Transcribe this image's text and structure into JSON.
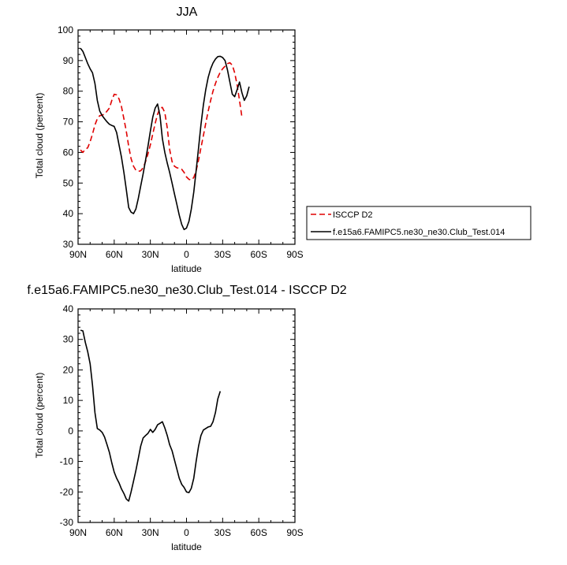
{
  "chart_data": [
    {
      "type": "line",
      "title": "JJA",
      "xlabel": "latitude",
      "ylabel": "Total cloud (percent)",
      "xlim": [
        90,
        -90
      ],
      "ylim": [
        30,
        100
      ],
      "x_ticks": [
        {
          "value": 90,
          "label": "90N"
        },
        {
          "value": 60,
          "label": "60N"
        },
        {
          "value": 30,
          "label": "30N"
        },
        {
          "value": 0,
          "label": "0"
        },
        {
          "value": -30,
          "label": "30S"
        },
        {
          "value": -60,
          "label": "60S"
        },
        {
          "value": -90,
          "label": "90S"
        }
      ],
      "y_ticks": [
        30,
        40,
        50,
        60,
        70,
        80,
        90,
        100
      ],
      "legend_position": "right",
      "series": [
        {
          "name": "ISCCP D2",
          "color": "#e00000",
          "dash": "dashed",
          "points": [
            [
              88,
              60.8
            ],
            [
              86,
              60
            ],
            [
              84,
              61
            ],
            [
              82,
              61.5
            ],
            [
              80,
              63.5
            ],
            [
              78,
              66
            ],
            [
              76,
              69
            ],
            [
              74,
              71
            ],
            [
              72,
              72
            ],
            [
              70,
              72.2
            ],
            [
              68,
              72.5
            ],
            [
              66,
              73.5
            ],
            [
              64,
              74.5
            ],
            [
              62,
              77
            ],
            [
              60,
              79
            ],
            [
              58,
              78.8
            ],
            [
              56,
              77.5
            ],
            [
              54,
              75
            ],
            [
              52,
              71
            ],
            [
              50,
              67
            ],
            [
              48,
              62
            ],
            [
              46,
              58
            ],
            [
              44,
              55.5
            ],
            [
              42,
              54.2
            ],
            [
              40,
              53.8
            ],
            [
              38,
              54
            ],
            [
              36,
              55
            ],
            [
              34,
              57
            ],
            [
              32,
              59.5
            ],
            [
              30,
              62.5
            ],
            [
              28,
              66
            ],
            [
              26,
              69.5
            ],
            [
              24,
              72.5
            ],
            [
              22,
              74.5
            ],
            [
              20,
              74.7
            ],
            [
              18,
              73
            ],
            [
              16,
              68
            ],
            [
              14,
              61
            ],
            [
              12,
              57
            ],
            [
              10,
              55.5
            ],
            [
              8,
              55
            ],
            [
              6,
              54.8
            ],
            [
              4,
              54.5
            ],
            [
              2,
              53.5
            ],
            [
              0,
              52
            ],
            [
              -2,
              51.2
            ],
            [
              -4,
              51
            ],
            [
              -6,
              51.8
            ],
            [
              -8,
              54
            ],
            [
              -10,
              57.5
            ],
            [
              -12,
              61.5
            ],
            [
              -14,
              65.5
            ],
            [
              -16,
              69.5
            ],
            [
              -18,
              73.5
            ],
            [
              -20,
              77
            ],
            [
              -22,
              80
            ],
            [
              -24,
              82.5
            ],
            [
              -26,
              84.5
            ],
            [
              -28,
              86.2
            ],
            [
              -30,
              87.3
            ],
            [
              -32,
              88.2
            ],
            [
              -34,
              89
            ],
            [
              -36,
              89.3
            ],
            [
              -38,
              88.5
            ],
            [
              -40,
              86
            ],
            [
              -42,
              82
            ],
            [
              -44,
              77
            ],
            [
              -46,
              71.5
            ]
          ]
        },
        {
          "name": "f.e15a6.FAMIPC5.ne30_ne30.Club_Test.014",
          "color": "#000000",
          "dash": "solid",
          "points": [
            [
              88,
              94
            ],
            [
              86,
              93
            ],
            [
              84,
              91
            ],
            [
              82,
              89
            ],
            [
              80,
              87.3
            ],
            [
              78,
              86
            ],
            [
              76,
              82.5
            ],
            [
              74,
              77
            ],
            [
              72,
              73.5
            ],
            [
              70,
              72
            ],
            [
              68,
              71
            ],
            [
              66,
              70
            ],
            [
              64,
              69.2
            ],
            [
              62,
              68.8
            ],
            [
              60,
              68.5
            ],
            [
              58,
              66.5
            ],
            [
              56,
              62.5
            ],
            [
              54,
              58.5
            ],
            [
              52,
              53.5
            ],
            [
              50,
              48
            ],
            [
              48,
              42
            ],
            [
              46,
              40.5
            ],
            [
              44,
              40
            ],
            [
              42,
              41.5
            ],
            [
              40,
              45
            ],
            [
              38,
              49
            ],
            [
              36,
              53
            ],
            [
              34,
              57.5
            ],
            [
              32,
              62
            ],
            [
              30,
              67
            ],
            [
              28,
              71.5
            ],
            [
              26,
              74.5
            ],
            [
              24,
              75.8
            ],
            [
              22,
              72
            ],
            [
              20,
              64.5
            ],
            [
              18,
              60
            ],
            [
              16,
              56.5
            ],
            [
              14,
              53.5
            ],
            [
              12,
              50
            ],
            [
              10,
              46.5
            ],
            [
              8,
              43
            ],
            [
              6,
              39.5
            ],
            [
              4,
              36.5
            ],
            [
              2,
              34.8
            ],
            [
              0,
              35.3
            ],
            [
              -2,
              37.5
            ],
            [
              -4,
              41.5
            ],
            [
              -6,
              47
            ],
            [
              -8,
              54
            ],
            [
              -10,
              61.5
            ],
            [
              -12,
              69
            ],
            [
              -14,
              75.5
            ],
            [
              -16,
              80.5
            ],
            [
              -18,
              84.5
            ],
            [
              -20,
              87.3
            ],
            [
              -22,
              89.2
            ],
            [
              -24,
              90.5
            ],
            [
              -26,
              91.3
            ],
            [
              -28,
              91.4
            ],
            [
              -30,
              91
            ],
            [
              -32,
              90
            ],
            [
              -34,
              87
            ],
            [
              -36,
              83
            ],
            [
              -38,
              79
            ],
            [
              -40,
              78.2
            ],
            [
              -42,
              80.5
            ],
            [
              -44,
              83
            ],
            [
              -46,
              79.5
            ],
            [
              -48,
              77
            ],
            [
              -50,
              78.5
            ],
            [
              -52,
              81.5
            ]
          ]
        }
      ]
    },
    {
      "type": "line",
      "title": "f.e15a6.FAMIPC5.ne30_ne30.Club_Test.014 - ISCCP D2",
      "xlabel": "latitude",
      "ylabel": "Total cloud (percent)",
      "xlim": [
        90,
        -90
      ],
      "ylim": [
        -30,
        40
      ],
      "x_ticks": [
        {
          "value": 90,
          "label": "90N"
        },
        {
          "value": 60,
          "label": "60N"
        },
        {
          "value": 30,
          "label": "30N"
        },
        {
          "value": 0,
          "label": "0"
        },
        {
          "value": -30,
          "label": "30S"
        },
        {
          "value": -60,
          "label": "60S"
        },
        {
          "value": -90,
          "label": "90S"
        }
      ],
      "y_ticks": [
        -30,
        -20,
        -10,
        0,
        10,
        20,
        30,
        40
      ],
      "series": [
        {
          "color": "#000000",
          "dash": "solid",
          "points": [
            [
              88,
              33
            ],
            [
              86,
              32.8
            ],
            [
              84,
              29
            ],
            [
              82,
              26
            ],
            [
              80,
              22
            ],
            [
              78,
              15
            ],
            [
              76,
              6
            ],
            [
              74,
              0.8
            ],
            [
              72,
              0.3
            ],
            [
              70,
              -0.5
            ],
            [
              68,
              -2
            ],
            [
              66,
              -4.5
            ],
            [
              64,
              -7
            ],
            [
              62,
              -10.5
            ],
            [
              60,
              -13.5
            ],
            [
              58,
              -15.5
            ],
            [
              56,
              -17
            ],
            [
              54,
              -19
            ],
            [
              52,
              -20.5
            ],
            [
              50,
              -22.3
            ],
            [
              48,
              -23
            ],
            [
              46,
              -20
            ],
            [
              44,
              -16.5
            ],
            [
              42,
              -13
            ],
            [
              40,
              -9
            ],
            [
              38,
              -5
            ],
            [
              36,
              -2.3
            ],
            [
              34,
              -1.5
            ],
            [
              32,
              -0.8
            ],
            [
              30,
              0.5
            ],
            [
              28,
              -0.5
            ],
            [
              26,
              0.5
            ],
            [
              24,
              2
            ],
            [
              22,
              2.5
            ],
            [
              20,
              3
            ],
            [
              18,
              1
            ],
            [
              16,
              -1.5
            ],
            [
              14,
              -4.5
            ],
            [
              12,
              -6.5
            ],
            [
              10,
              -9.5
            ],
            [
              8,
              -12.5
            ],
            [
              6,
              -15.5
            ],
            [
              4,
              -17.5
            ],
            [
              2,
              -18.5
            ],
            [
              0,
              -20
            ],
            [
              -2,
              -20.2
            ],
            [
              -4,
              -18.8
            ],
            [
              -6,
              -15.5
            ],
            [
              -8,
              -10
            ],
            [
              -10,
              -5
            ],
            [
              -12,
              -1.5
            ],
            [
              -14,
              0.3
            ],
            [
              -16,
              0.8
            ],
            [
              -18,
              1.3
            ],
            [
              -20,
              1.5
            ],
            [
              -22,
              3
            ],
            [
              -24,
              6
            ],
            [
              -26,
              10.5
            ],
            [
              -28,
              13
            ]
          ]
        }
      ]
    }
  ]
}
